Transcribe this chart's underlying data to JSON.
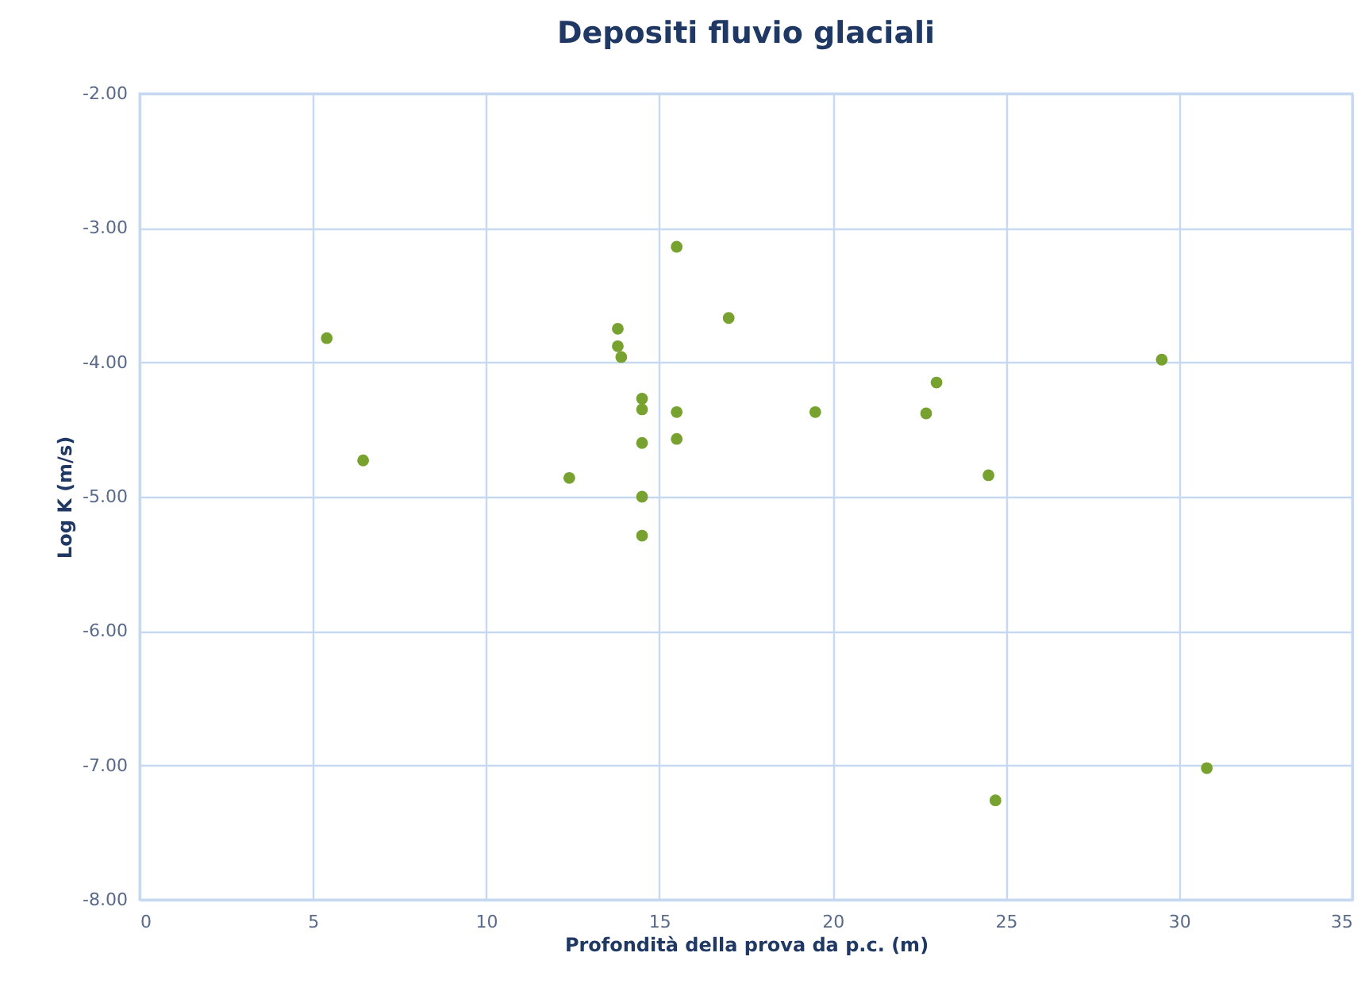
{
  "chart_data": {
    "type": "scatter",
    "title": "Depositi fluvio glaciali",
    "xlabel": "Profondità della prova da p.c. (m)",
    "ylabel": "Log K (m/s)",
    "x": [
      5.4,
      6.45,
      12.4,
      13.8,
      13.8,
      13.9,
      14.5,
      14.5,
      14.5,
      14.5,
      14.5,
      15.5,
      15.5,
      15.5,
      17.0,
      19.5,
      22.7,
      23.0,
      24.5,
      24.7,
      29.5,
      30.8
    ],
    "series": [
      {
        "color": "#78a22f",
        "values": [
          -3.82,
          -4.73,
          -4.86,
          -3.75,
          -3.88,
          -3.96,
          -4.27,
          -4.35,
          -4.6,
          -5.0,
          -5.29,
          -3.14,
          -4.37,
          -4.57,
          -3.67,
          -4.37,
          -4.38,
          -4.15,
          -4.84,
          -7.26,
          -3.98,
          -7.02
        ]
      }
    ],
    "xlim": [
      0,
      35
    ],
    "xticks": [
      0,
      5,
      10,
      15,
      20,
      25,
      30,
      35
    ],
    "ylim": [
      -8,
      -2
    ],
    "yticks": [
      {
        "value": -8,
        "label": "-8.00"
      },
      {
        "value": -7,
        "label": "-7.00"
      },
      {
        "value": -6,
        "label": "-6.00"
      },
      {
        "value": -5,
        "label": "-5.00"
      },
      {
        "value": -4,
        "label": "-4.00"
      },
      {
        "value": -3,
        "label": "-3.00"
      },
      {
        "value": -2,
        "label": "-2.00"
      }
    ],
    "grid": true,
    "marker": "circle"
  }
}
